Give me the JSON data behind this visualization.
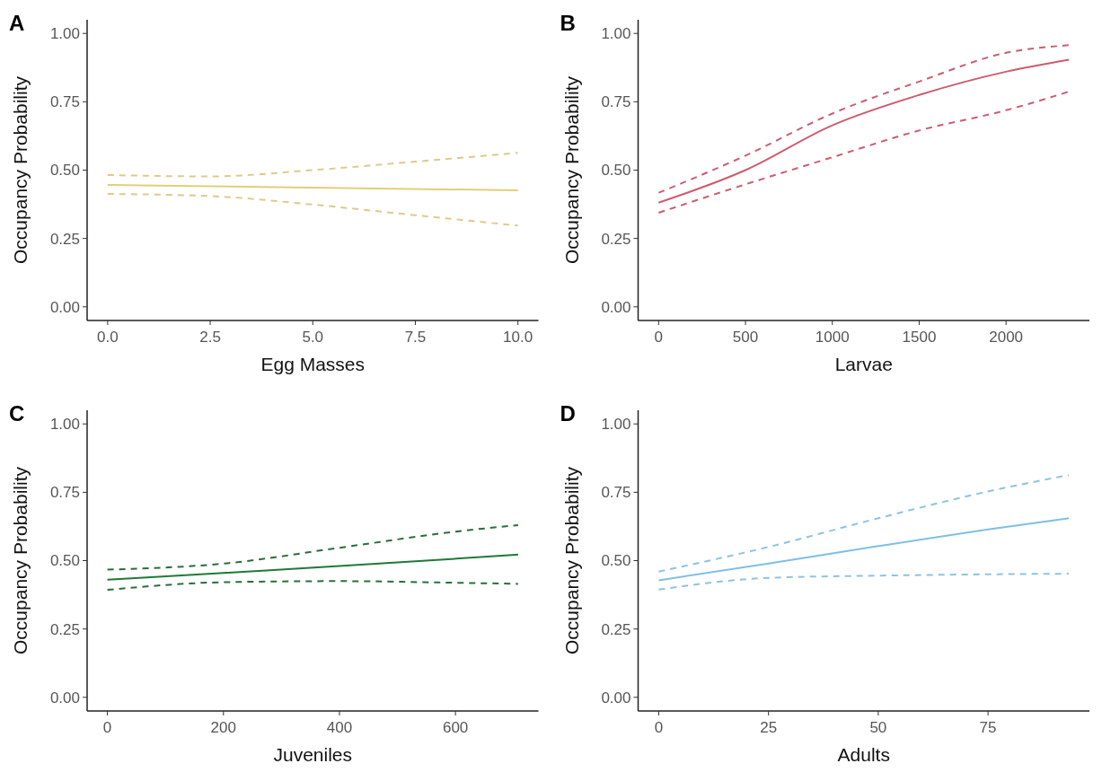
{
  "chart_data": [
    {
      "type": "line",
      "title": "A",
      "xlabel": "Egg Masses",
      "ylabel": "Occupancy Probability",
      "xlim": [
        -0.5,
        10.5
      ],
      "xticks": [
        {
          "value": 0,
          "label": "0.0"
        },
        {
          "value": 2.5,
          "label": "2.5"
        },
        {
          "value": 5,
          "label": "5.0"
        },
        {
          "value": 7.5,
          "label": "7.5"
        },
        {
          "value": 10,
          "label": "10.0"
        }
      ],
      "ylim": [
        -0.05,
        1.05
      ],
      "yticks": [
        {
          "value": 0,
          "label": "0.00"
        },
        {
          "value": 0.25,
          "label": "0.25"
        },
        {
          "value": 0.5,
          "label": "0.50"
        },
        {
          "value": 0.75,
          "label": "0.75"
        },
        {
          "value": 1,
          "label": "1.00"
        }
      ],
      "grid": false,
      "series": [
        {
          "color": "#e0cf7a",
          "line_style": "solid",
          "x": [
            0,
            10
          ],
          "values": [
            0.446,
            0.426
          ]
        },
        {
          "color": "#e0c98a",
          "line_style": "dashed",
          "x": [
            0,
            2.5,
            5,
            7.5,
            10
          ],
          "values": [
            0.482,
            0.477,
            0.5,
            0.531,
            0.563
          ]
        },
        {
          "color": "#e0c98a",
          "line_style": "dashed",
          "x": [
            0,
            2.5,
            5,
            7.5,
            10
          ],
          "values": [
            0.413,
            0.405,
            0.374,
            0.335,
            0.297
          ]
        }
      ]
    },
    {
      "type": "line",
      "title": "B",
      "xlabel": "Larvae",
      "ylabel": "Occupancy Probability",
      "xlim": [
        -118,
        2480
      ],
      "xticks": [
        0,
        500,
        1000,
        1500,
        2000
      ],
      "ylim": [
        -0.05,
        1.05
      ],
      "yticks": [
        {
          "value": 0,
          "label": "0.00"
        },
        {
          "value": 0.25,
          "label": "0.25"
        },
        {
          "value": 0.5,
          "label": "0.50"
        },
        {
          "value": 0.75,
          "label": "0.75"
        },
        {
          "value": 1,
          "label": "1.00"
        }
      ],
      "grid": false,
      "series": [
        {
          "color": "#cc5d6e",
          "line_style": "solid",
          "x": [
            0,
            500,
            1000,
            1500,
            2000,
            2362
          ],
          "values": [
            0.381,
            0.5,
            0.664,
            0.775,
            0.86,
            0.904
          ]
        },
        {
          "color": "#cc5d6e",
          "line_style": "dashed",
          "x": [
            0,
            500,
            1000,
            1500,
            2000,
            2362
          ],
          "values": [
            0.417,
            0.553,
            0.707,
            0.824,
            0.929,
            0.957
          ]
        },
        {
          "color": "#cc5d6e",
          "line_style": "dashed",
          "x": [
            0,
            500,
            1000,
            1500,
            2000,
            2362
          ],
          "values": [
            0.344,
            0.448,
            0.547,
            0.645,
            0.719,
            0.787
          ]
        }
      ]
    },
    {
      "type": "line",
      "title": "C",
      "xlabel": "Juveniles",
      "ylabel": "Occupancy Probability",
      "xlim": [
        -35,
        743
      ],
      "xticks": [
        0,
        200,
        400,
        600
      ],
      "ylim": [
        -0.05,
        1.05
      ],
      "yticks": [
        {
          "value": 0,
          "label": "0.00"
        },
        {
          "value": 0.25,
          "label": "0.25"
        },
        {
          "value": 0.5,
          "label": "0.50"
        },
        {
          "value": 0.75,
          "label": "0.75"
        },
        {
          "value": 1,
          "label": "1.00"
        }
      ],
      "grid": false,
      "series": [
        {
          "color": "#1f7a36",
          "line_style": "solid",
          "x": [
            0,
            200,
            400,
            600,
            708
          ],
          "values": [
            0.43,
            0.455,
            0.48,
            0.507,
            0.522
          ]
        },
        {
          "color": "#2a6e3a",
          "line_style": "dashed",
          "x": [
            0,
            200,
            400,
            600,
            708
          ],
          "values": [
            0.467,
            0.489,
            0.547,
            0.606,
            0.63
          ]
        },
        {
          "color": "#2a6e3a",
          "line_style": "dashed",
          "x": [
            0,
            200,
            400,
            600,
            708
          ],
          "values": [
            0.393,
            0.421,
            0.425,
            0.419,
            0.415
          ]
        }
      ]
    },
    {
      "type": "line",
      "title": "D",
      "xlabel": "Adults",
      "ylabel": "Occupancy Probability",
      "xlim": [
        -4.7,
        98.1
      ],
      "xticks": [
        0,
        25,
        50,
        75
      ],
      "ylim": [
        -0.05,
        1.05
      ],
      "yticks": [
        {
          "value": 0,
          "label": "0.00"
        },
        {
          "value": 0.25,
          "label": "0.25"
        },
        {
          "value": 0.5,
          "label": "0.50"
        },
        {
          "value": 0.75,
          "label": "0.75"
        },
        {
          "value": 1,
          "label": "1.00"
        }
      ],
      "grid": false,
      "series": [
        {
          "color": "#7fbfe6",
          "line_style": "solid",
          "x": [
            0,
            25,
            50,
            75,
            93.4
          ],
          "values": [
            0.428,
            0.489,
            0.553,
            0.614,
            0.655
          ]
        },
        {
          "color": "#8ec3e0",
          "line_style": "dashed",
          "x": [
            0,
            25,
            50,
            75,
            93.4
          ],
          "values": [
            0.46,
            0.55,
            0.655,
            0.753,
            0.813
          ]
        },
        {
          "color": "#8ec3e0",
          "line_style": "dashed",
          "x": [
            0,
            25,
            50,
            75,
            93.4
          ],
          "values": [
            0.394,
            0.437,
            0.445,
            0.45,
            0.452
          ]
        }
      ]
    }
  ]
}
